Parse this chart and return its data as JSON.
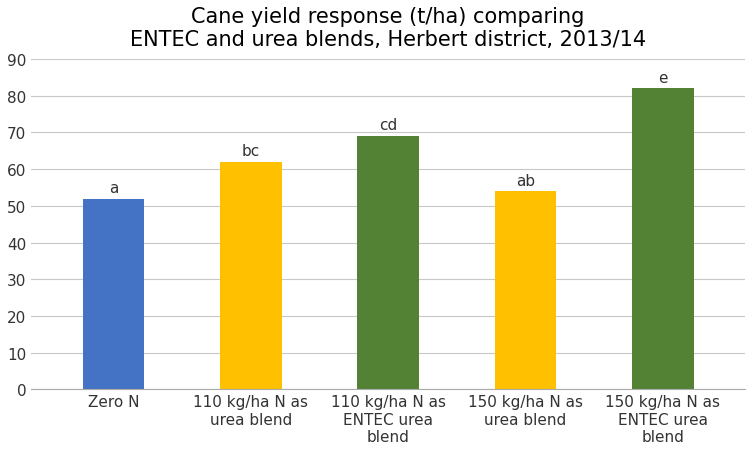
{
  "title": "Cane yield response (t/ha) comparing\nENTEC and urea blends, Herbert district, 2013/14",
  "categories": [
    "Zero N",
    "110 kg/ha N as\nurea blend",
    "110 kg/ha N as\nENTEC urea\nblend",
    "150 kg/ha N as\nurea blend",
    "150 kg/ha N as\nENTEC urea\nblend"
  ],
  "values": [
    52,
    62,
    69,
    54,
    82
  ],
  "bar_colors": [
    "#4472c4",
    "#ffc000",
    "#548235",
    "#ffc000",
    "#548235"
  ],
  "labels": [
    "a",
    "bc",
    "cd",
    "ab",
    "e"
  ],
  "ylim": [
    0,
    90
  ],
  "yticks": [
    0,
    10,
    20,
    30,
    40,
    50,
    60,
    70,
    80,
    90
  ],
  "title_fontsize": 15,
  "label_fontsize": 11,
  "tick_fontsize": 11,
  "background_color": "#ffffff",
  "grid_color": "#c8c8c8"
}
